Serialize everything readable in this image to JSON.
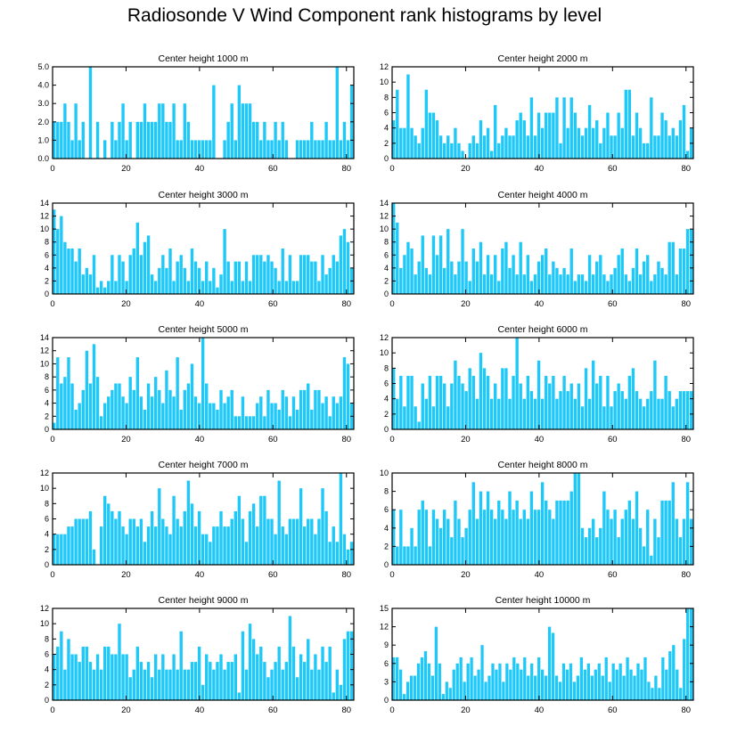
{
  "title": "Radiosonde V Wind Component rank histograms by level",
  "bar_color": "#1ec8f8",
  "chart_data": [
    {
      "type": "bar",
      "title": "Center height 1000 m",
      "xlabel": "",
      "ylabel": "",
      "xlim": [
        0,
        82
      ],
      "ylim": [
        0,
        5
      ],
      "yticks": [
        0,
        1,
        2,
        3,
        4,
        5
      ],
      "ytick_labels": [
        "0.0",
        "1.0",
        "2.0",
        "3.0",
        "4.0",
        "5.0"
      ],
      "xticks": [
        0,
        20,
        40,
        60,
        80
      ],
      "xtick_labels": [
        "0",
        "20",
        "40",
        "60",
        "80"
      ],
      "values": [
        2,
        2,
        2,
        3,
        2,
        1,
        3,
        1,
        2,
        0,
        5,
        0,
        2,
        0,
        1,
        0,
        2,
        1,
        2,
        3,
        1,
        2,
        0,
        2,
        2,
        3,
        2,
        2,
        2,
        3,
        3,
        2,
        2,
        3,
        1,
        1,
        3,
        2,
        1,
        1,
        1,
        1,
        1,
        1,
        4,
        0,
        0,
        1,
        2,
        3,
        1,
        4,
        3,
        3,
        3,
        2,
        2,
        1,
        2,
        1,
        1,
        2,
        1,
        2,
        1,
        0,
        0,
        1,
        1,
        1,
        1,
        2,
        1,
        1,
        1,
        2,
        1,
        1,
        5,
        1,
        2,
        1,
        4
      ]
    },
    {
      "type": "bar",
      "title": "Center height 2000 m",
      "xlabel": "",
      "ylabel": "",
      "xlim": [
        0,
        82
      ],
      "ylim": [
        0,
        12
      ],
      "yticks": [
        0,
        2,
        4,
        6,
        8,
        10,
        12
      ],
      "ytick_labels": [
        "0",
        "2",
        "4",
        "6",
        "8",
        "10",
        "12"
      ],
      "xticks": [
        0,
        20,
        40,
        60,
        80
      ],
      "xtick_labels": [
        "0",
        "20",
        "40",
        "60",
        "80"
      ],
      "values": [
        5,
        9,
        4,
        4,
        11,
        4,
        3,
        2,
        4,
        9,
        6,
        6,
        5,
        3,
        2,
        3,
        2,
        4,
        2,
        1,
        0,
        2,
        3,
        2,
        5,
        3,
        4,
        1,
        7,
        2,
        3,
        4,
        3,
        3,
        5,
        6,
        5,
        3,
        8,
        3,
        6,
        4,
        6,
        6,
        6,
        8,
        2,
        8,
        4,
        8,
        6,
        4,
        3,
        4,
        7,
        4,
        5,
        2,
        4,
        6,
        3,
        3,
        6,
        4,
        9,
        9,
        3,
        6,
        4,
        2,
        2,
        8,
        3,
        3,
        6,
        5,
        3,
        4,
        3,
        5,
        7,
        1,
        4
      ]
    },
    {
      "type": "bar",
      "title": "Center height 3000 m",
      "xlabel": "",
      "ylabel": "",
      "xlim": [
        0,
        82
      ],
      "ylim": [
        0,
        14
      ],
      "yticks": [
        0,
        2,
        4,
        6,
        8,
        10,
        12,
        14
      ],
      "ytick_labels": [
        "0",
        "2",
        "4",
        "6",
        "8",
        "10",
        "12",
        "14"
      ],
      "xticks": [
        0,
        20,
        40,
        60,
        80
      ],
      "xtick_labels": [
        "0",
        "20",
        "40",
        "60",
        "80"
      ],
      "values": [
        13,
        10,
        12,
        8,
        7,
        7,
        5,
        7,
        3,
        4,
        3,
        6,
        1,
        2,
        1,
        2,
        6,
        2,
        6,
        5,
        2,
        6,
        7,
        11,
        6,
        8,
        9,
        3,
        2,
        4,
        6,
        4,
        7,
        2,
        5,
        6,
        4,
        2,
        7,
        5,
        4,
        2,
        5,
        2,
        4,
        1,
        3,
        10,
        5,
        2,
        5,
        5,
        2,
        5,
        2,
        6,
        6,
        6,
        5,
        6,
        5,
        4,
        2,
        7,
        2,
        6,
        2,
        2,
        6,
        6,
        6,
        5,
        5,
        2,
        6,
        3,
        4,
        6,
        5,
        9,
        10,
        8,
        4
      ]
    },
    {
      "type": "bar",
      "title": "Center height 4000 m",
      "xlabel": "",
      "ylabel": "",
      "xlim": [
        0,
        82
      ],
      "ylim": [
        0,
        14
      ],
      "yticks": [
        0,
        2,
        4,
        6,
        8,
        10,
        12,
        14
      ],
      "ytick_labels": [
        "0",
        "2",
        "4",
        "6",
        "8",
        "10",
        "12",
        "14"
      ],
      "xticks": [
        0,
        20,
        40,
        60,
        80
      ],
      "xtick_labels": [
        "0",
        "20",
        "40",
        "60",
        "80"
      ],
      "values": [
        14,
        11,
        4,
        6,
        8,
        7,
        3,
        5,
        9,
        4,
        3,
        9,
        6,
        9,
        4,
        10,
        5,
        3,
        5,
        10,
        5,
        2,
        7,
        5,
        8,
        3,
        6,
        3,
        6,
        2,
        7,
        8,
        4,
        6,
        3,
        8,
        3,
        6,
        2,
        3,
        5,
        6,
        7,
        3,
        5,
        4,
        3,
        4,
        3,
        7,
        2,
        3,
        3,
        2,
        6,
        3,
        5,
        6,
        3,
        2,
        3,
        4,
        6,
        7,
        3,
        2,
        4,
        7,
        3,
        5,
        6,
        2,
        3,
        5,
        4,
        3,
        8,
        8,
        3,
        7,
        7,
        10,
        10
      ]
    },
    {
      "type": "bar",
      "title": "Center height 5000 m",
      "xlabel": "",
      "ylabel": "",
      "xlim": [
        0,
        82
      ],
      "ylim": [
        0,
        14
      ],
      "yticks": [
        0,
        2,
        4,
        6,
        8,
        10,
        12,
        14
      ],
      "ytick_labels": [
        "0",
        "2",
        "4",
        "6",
        "8",
        "10",
        "12",
        "14"
      ],
      "xticks": [
        0,
        20,
        40,
        60,
        80
      ],
      "xtick_labels": [
        "0",
        "20",
        "40",
        "60",
        "80"
      ],
      "values": [
        1,
        11,
        7,
        8,
        11,
        7,
        3,
        4,
        6,
        12,
        7,
        13,
        8,
        2,
        4,
        5,
        6,
        7,
        7,
        5,
        4,
        8,
        6,
        11,
        5,
        3,
        7,
        5,
        8,
        6,
        4,
        9,
        6,
        5,
        11,
        3,
        6,
        7,
        10,
        5,
        4,
        14,
        7,
        4,
        4,
        3,
        6,
        4,
        5,
        6,
        2,
        2,
        5,
        2,
        2,
        2,
        4,
        5,
        2,
        6,
        4,
        4,
        3,
        6,
        5,
        2,
        5,
        3,
        6,
        6,
        7,
        3,
        6,
        6,
        4,
        5,
        2,
        5,
        4,
        5,
        11,
        10,
        4
      ]
    },
    {
      "type": "bar",
      "title": "Center height 6000 m",
      "xlabel": "",
      "ylabel": "",
      "xlim": [
        0,
        82
      ],
      "ylim": [
        0,
        12
      ],
      "yticks": [
        0,
        2,
        4,
        6,
        8,
        10,
        12
      ],
      "ytick_labels": [
        "0",
        "2",
        "4",
        "6",
        "8",
        "10",
        "12"
      ],
      "xticks": [
        0,
        20,
        40,
        60,
        80
      ],
      "xtick_labels": [
        "0",
        "20",
        "40",
        "60",
        "80"
      ],
      "values": [
        8,
        4,
        7,
        3,
        7,
        7,
        3,
        1,
        6,
        4,
        7,
        3,
        7,
        7,
        6,
        3,
        6,
        9,
        7,
        6,
        5,
        8,
        7,
        4,
        10,
        8,
        7,
        4,
        6,
        4,
        8,
        8,
        4,
        7,
        12,
        6,
        4,
        7,
        5,
        4,
        9,
        4,
        7,
        6,
        7,
        4,
        5,
        7,
        5,
        6,
        4,
        6,
        3,
        8,
        4,
        9,
        6,
        7,
        3,
        7,
        3,
        5,
        6,
        5,
        4,
        7,
        8,
        5,
        4,
        3,
        4,
        5,
        9,
        4,
        4,
        7,
        5,
        3,
        4,
        5,
        5,
        5,
        5
      ]
    },
    {
      "type": "bar",
      "title": "Center height 7000 m",
      "xlabel": "",
      "ylabel": "",
      "xlim": [
        0,
        82
      ],
      "ylim": [
        0,
        12
      ],
      "yticks": [
        0,
        2,
        4,
        6,
        8,
        10,
        12
      ],
      "ytick_labels": [
        "0",
        "2",
        "4",
        "6",
        "8",
        "10",
        "12"
      ],
      "xticks": [
        0,
        20,
        40,
        60,
        80
      ],
      "xtick_labels": [
        "0",
        "20",
        "40",
        "60",
        "80"
      ],
      "values": [
        4,
        4,
        4,
        4,
        5,
        5,
        6,
        6,
        6,
        6,
        7,
        2,
        0,
        5,
        9,
        8,
        7,
        6,
        7,
        5,
        4,
        6,
        6,
        5,
        6,
        3,
        5,
        7,
        5,
        10,
        6,
        5,
        4,
        9,
        6,
        5,
        7,
        11,
        8,
        5,
        7,
        4,
        4,
        3,
        5,
        5,
        7,
        5,
        5,
        6,
        7,
        9,
        6,
        3,
        7,
        8,
        5,
        9,
        9,
        6,
        6,
        4,
        11,
        5,
        4,
        6,
        6,
        6,
        10,
        5,
        6,
        6,
        4,
        6,
        10,
        7,
        3,
        5,
        3,
        12,
        4,
        2,
        3
      ]
    },
    {
      "type": "bar",
      "title": "Center height 8000 m",
      "xlabel": "",
      "ylabel": "",
      "xlim": [
        0,
        82
      ],
      "ylim": [
        0,
        10
      ],
      "yticks": [
        0,
        2,
        4,
        6,
        8,
        10
      ],
      "ytick_labels": [
        "0",
        "2",
        "4",
        "6",
        "8",
        "10"
      ],
      "xticks": [
        0,
        20,
        40,
        60,
        80
      ],
      "xtick_labels": [
        "0",
        "20",
        "40",
        "60",
        "80"
      ],
      "values": [
        6,
        2,
        6,
        2,
        2,
        4,
        2,
        6,
        7,
        6,
        2,
        6,
        5,
        4,
        6,
        5,
        3,
        7,
        5,
        3,
        4,
        6,
        9,
        5,
        8,
        6,
        8,
        6,
        5,
        7,
        6,
        5,
        8,
        6,
        7,
        5,
        6,
        5,
        8,
        6,
        6,
        9,
        7,
        6,
        5,
        7,
        7,
        7,
        7,
        8,
        10,
        10,
        4,
        3,
        4,
        5,
        3,
        4,
        8,
        6,
        5,
        6,
        3,
        5,
        6,
        7,
        5,
        8,
        4,
        2,
        6,
        1,
        5,
        3,
        7,
        7,
        7,
        9,
        5,
        3,
        5,
        9,
        5
      ]
    },
    {
      "type": "bar",
      "title": "Center height 9000 m",
      "xlabel": "",
      "ylabel": "",
      "xlim": [
        0,
        82
      ],
      "ylim": [
        0,
        12
      ],
      "yticks": [
        0,
        2,
        4,
        6,
        8,
        10,
        12
      ],
      "ytick_labels": [
        "0",
        "2",
        "4",
        "6",
        "8",
        "10",
        "12"
      ],
      "xticks": [
        0,
        20,
        40,
        60,
        80
      ],
      "xtick_labels": [
        "0",
        "20",
        "40",
        "60",
        "80"
      ],
      "values": [
        6,
        7,
        9,
        4,
        8,
        6,
        6,
        5,
        7,
        7,
        5,
        4,
        6,
        4,
        7,
        7,
        6,
        6,
        10,
        6,
        6,
        3,
        4,
        7,
        5,
        4,
        5,
        3,
        6,
        4,
        6,
        4,
        4,
        6,
        4,
        9,
        4,
        4,
        5,
        5,
        7,
        2,
        6,
        5,
        4,
        5,
        6,
        4,
        5,
        5,
        6,
        1,
        9,
        4,
        10,
        8,
        6,
        7,
        5,
        3,
        4,
        5,
        7,
        4,
        5,
        11,
        7,
        3,
        6,
        5,
        8,
        4,
        6,
        4,
        7,
        5,
        7,
        1,
        4,
        2,
        8,
        9,
        9
      ]
    },
    {
      "type": "bar",
      "title": "Center height 10000 m",
      "xlabel": "",
      "ylabel": "",
      "xlim": [
        0,
        82
      ],
      "ylim": [
        0,
        15
      ],
      "yticks": [
        0,
        3,
        6,
        9,
        12,
        15
      ],
      "ytick_labels": [
        "0",
        "3",
        "6",
        "9",
        "12",
        "15"
      ],
      "xticks": [
        0,
        20,
        40,
        60,
        80
      ],
      "xtick_labels": [
        "0",
        "20",
        "40",
        "60",
        "80"
      ],
      "values": [
        7,
        7,
        5,
        1,
        3,
        4,
        4,
        6,
        7,
        8,
        6,
        4,
        12,
        6,
        1,
        3,
        2,
        5,
        6,
        7,
        3,
        6,
        7,
        4,
        5,
        9,
        3,
        4,
        6,
        5,
        6,
        3,
        6,
        5,
        7,
        6,
        5,
        7,
        4,
        6,
        4,
        7,
        5,
        4,
        12,
        11,
        4,
        3,
        6,
        5,
        6,
        3,
        4,
        7,
        5,
        6,
        4,
        5,
        6,
        4,
        7,
        3,
        6,
        5,
        6,
        4,
        7,
        5,
        4,
        6,
        5,
        7,
        3,
        2,
        4,
        2,
        7,
        5,
        8,
        9,
        5,
        2,
        10,
        15,
        15
      ]
    }
  ]
}
